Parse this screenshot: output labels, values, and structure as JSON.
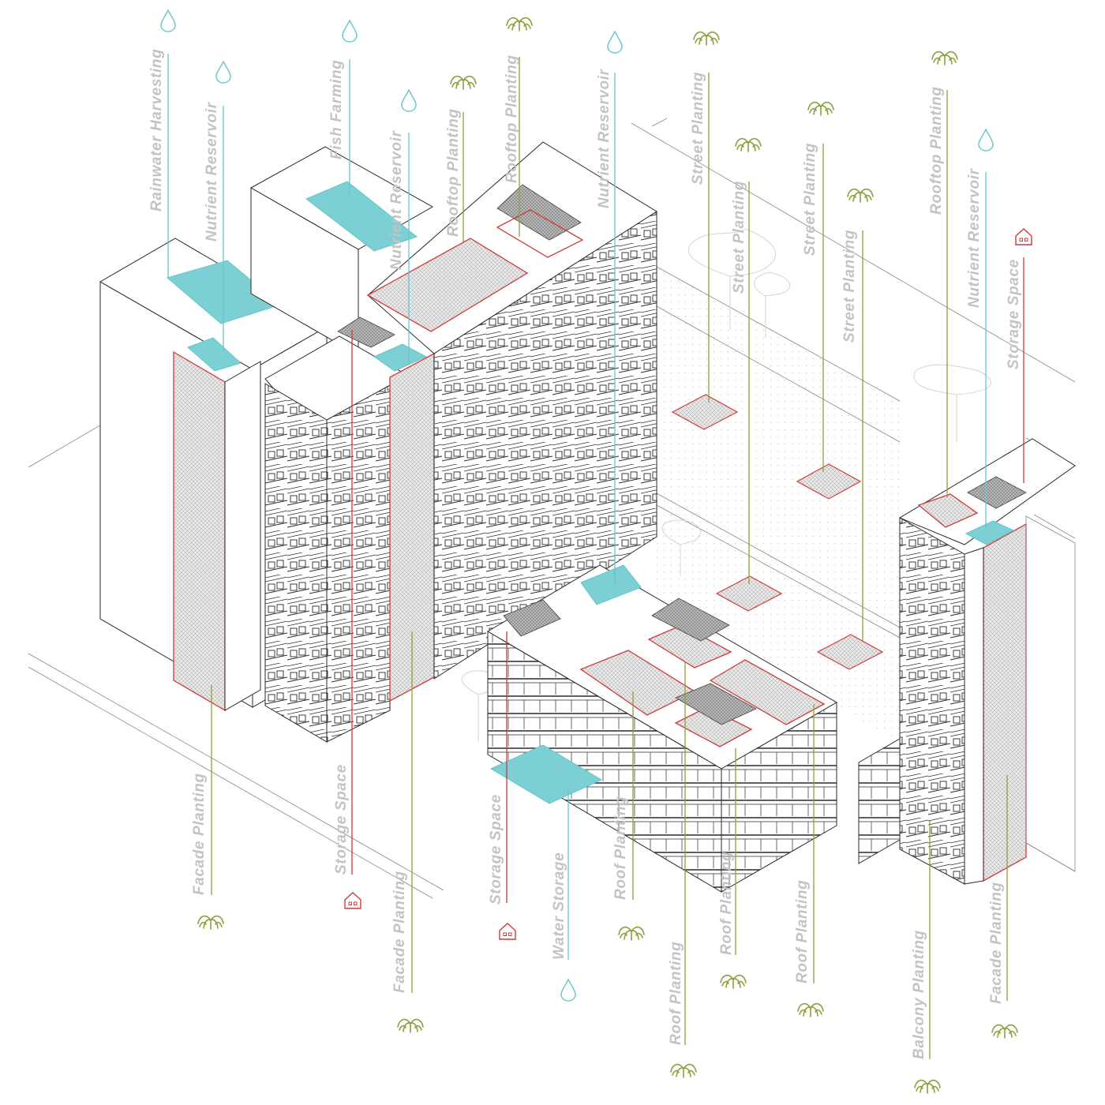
{
  "colors": {
    "water": "#67c6cc",
    "planting": "#8aa23c",
    "storage": "#d13a3a",
    "label": "#c3c3c3",
    "line": "#2a2a2a"
  },
  "icons": {
    "water": "water-drop-icon",
    "planting": "plant-leaf-icon",
    "storage": "house-icon"
  },
  "callouts": [
    {
      "id": "rainwater-harvesting",
      "text": "Rainwater Harvesting",
      "category": "water",
      "side": "top"
    },
    {
      "id": "nutrient-reservoir-1",
      "text": "Nutrient Reservoir",
      "category": "water",
      "side": "top"
    },
    {
      "id": "fish-farming",
      "text": "Fish Farming",
      "category": "water",
      "side": "top"
    },
    {
      "id": "nutrient-reservoir-2",
      "text": "Nutrient Reservoir",
      "category": "water",
      "side": "top"
    },
    {
      "id": "rooftop-planting-1",
      "text": "Rooftop Planting",
      "category": "planting",
      "side": "top"
    },
    {
      "id": "rooftop-planting-2",
      "text": "Rooftop Planting",
      "category": "planting",
      "side": "top"
    },
    {
      "id": "nutrient-reservoir-3",
      "text": "Nutrient Reservoir",
      "category": "water",
      "side": "top"
    },
    {
      "id": "street-planting-1",
      "text": "Street Planting",
      "category": "planting",
      "side": "top"
    },
    {
      "id": "street-planting-2",
      "text": "Street Planting",
      "category": "planting",
      "side": "top"
    },
    {
      "id": "street-planting-3",
      "text": "Street Planting",
      "category": "planting",
      "side": "top"
    },
    {
      "id": "street-planting-4",
      "text": "Street Planting",
      "category": "planting",
      "side": "top"
    },
    {
      "id": "rooftop-planting-3",
      "text": "Rooftop Planting",
      "category": "planting",
      "side": "top"
    },
    {
      "id": "nutrient-reservoir-4",
      "text": "Nutrient Reservoir",
      "category": "water",
      "side": "top"
    },
    {
      "id": "storage-space-1",
      "text": "Storage Space",
      "category": "storage",
      "side": "top"
    },
    {
      "id": "facade-planting-1",
      "text": "Facade Planting",
      "category": "planting",
      "side": "bottom"
    },
    {
      "id": "storage-space-2",
      "text": "Storage Space",
      "category": "storage",
      "side": "bottom"
    },
    {
      "id": "facade-planting-2",
      "text": "Facade Planting",
      "category": "planting",
      "side": "bottom"
    },
    {
      "id": "storage-space-3",
      "text": "Storage Space",
      "category": "storage",
      "side": "bottom"
    },
    {
      "id": "water-storage",
      "text": "Water Storage",
      "category": "water",
      "side": "bottom"
    },
    {
      "id": "roof-planting-1",
      "text": "Roof Planting",
      "category": "planting",
      "side": "bottom"
    },
    {
      "id": "roof-planting-2",
      "text": "Roof Planting",
      "category": "planting",
      "side": "bottom"
    },
    {
      "id": "roof-planting-3",
      "text": "Roof Planting",
      "category": "planting",
      "side": "bottom"
    },
    {
      "id": "roof-planting-4",
      "text": "Roof Planting",
      "category": "planting",
      "side": "bottom"
    },
    {
      "id": "balcony-planting",
      "text": "Balcony Planting",
      "category": "planting",
      "side": "bottom"
    },
    {
      "id": "facade-planting-3",
      "text": "Facade Planting",
      "category": "planting",
      "side": "bottom"
    }
  ]
}
